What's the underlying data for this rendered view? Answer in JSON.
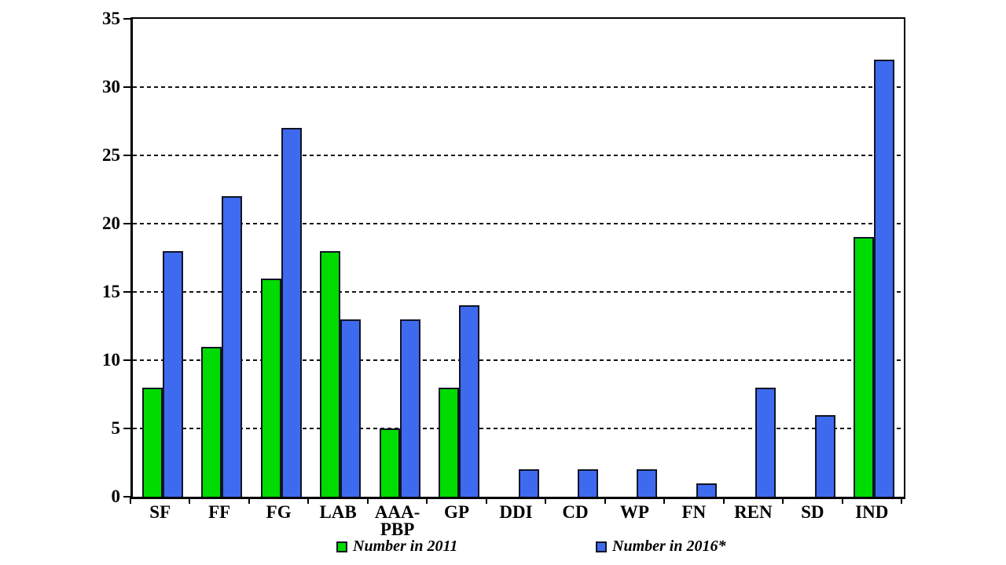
{
  "chart_data": {
    "type": "bar",
    "title": "",
    "xlabel": "",
    "ylabel": "",
    "categories": [
      "SF",
      "FF",
      "FG",
      "LAB",
      "AAA-\nPBP",
      "GP",
      "DDI",
      "CD",
      "WP",
      "FN",
      "REN",
      "SD",
      "IND"
    ],
    "series": [
      {
        "name": "Number in 2011",
        "color": "#00DB00",
        "values": [
          8,
          11,
          16,
          18,
          5,
          8,
          0,
          0,
          0,
          0,
          0,
          0,
          19
        ]
      },
      {
        "name": "Number in 2016*",
        "color": "#3E6AF0",
        "values": [
          18,
          22,
          27,
          13,
          13,
          14,
          2,
          2,
          2,
          1,
          8,
          6,
          32
        ]
      }
    ],
    "ylim": [
      0,
      35
    ],
    "yticks": [
      0,
      5,
      10,
      15,
      20,
      25,
      30,
      35
    ],
    "grid": "horizontal-dashed",
    "bar_border_color": "#101424",
    "legend_position": "bottom",
    "legend_labels": [
      "Number in 2011",
      "Number in 2016*"
    ]
  }
}
